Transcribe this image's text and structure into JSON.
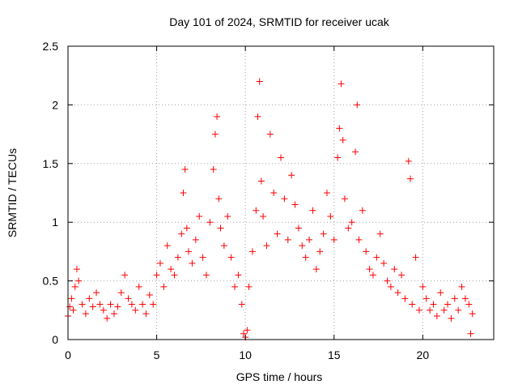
{
  "chart_data": {
    "type": "scatter",
    "title": "Day 101 of 2024, SRMTID for receiver ucak",
    "xlabel": "GPS time / hours",
    "ylabel": "SRMTID / TECUs",
    "xlim": [
      0,
      24
    ],
    "ylim": [
      0,
      2.5
    ],
    "xticks": [
      0,
      5,
      10,
      15,
      20
    ],
    "xtick_labels": [
      "0",
      "5",
      "10",
      "15",
      "20"
    ],
    "yticks": [
      0,
      0.5,
      1,
      1.5,
      2,
      2.5
    ],
    "ytick_labels": [
      "0",
      "0.5",
      "1",
      "1.5",
      "2",
      "2.5"
    ],
    "grid": true,
    "marker": "+",
    "series": [
      {
        "name": "SRMTID",
        "color": "#ff0000",
        "x": [
          0.0,
          0.1,
          0.2,
          0.3,
          0.4,
          0.5,
          0.6,
          0.8,
          1.0,
          1.2,
          1.4,
          1.6,
          1.8,
          2.0,
          2.2,
          2.4,
          2.6,
          2.8,
          3.0,
          3.2,
          3.4,
          3.6,
          3.8,
          4.0,
          4.2,
          4.4,
          4.6,
          4.8,
          5.0,
          5.2,
          5.4,
          5.6,
          5.8,
          6.0,
          6.2,
          6.4,
          6.5,
          6.6,
          6.7,
          6.8,
          7.0,
          7.2,
          7.4,
          7.6,
          7.8,
          8.0,
          8.2,
          8.3,
          8.4,
          8.5,
          8.6,
          8.8,
          9.0,
          9.2,
          9.4,
          9.6,
          9.8,
          9.9,
          10.0,
          10.1,
          10.2,
          10.4,
          10.6,
          10.7,
          10.8,
          10.9,
          11.0,
          11.2,
          11.4,
          11.6,
          11.8,
          12.0,
          12.2,
          12.4,
          12.6,
          12.8,
          13.0,
          13.2,
          13.4,
          13.6,
          13.8,
          14.0,
          14.2,
          14.4,
          14.6,
          14.8,
          15.0,
          15.2,
          15.3,
          15.4,
          15.5,
          15.6,
          15.8,
          16.0,
          16.2,
          16.3,
          16.4,
          16.6,
          16.8,
          17.0,
          17.2,
          17.4,
          17.6,
          17.8,
          18.0,
          18.2,
          18.4,
          18.6,
          18.8,
          19.0,
          19.2,
          19.3,
          19.4,
          19.6,
          19.8,
          20.0,
          20.2,
          20.4,
          20.6,
          20.8,
          21.0,
          21.2,
          21.4,
          21.6,
          21.8,
          22.0,
          22.2,
          22.4,
          22.6,
          22.7,
          22.8
        ],
        "y": [
          0.2,
          0.28,
          0.35,
          0.25,
          0.45,
          0.6,
          0.5,
          0.3,
          0.22,
          0.35,
          0.28,
          0.4,
          0.3,
          0.25,
          0.18,
          0.3,
          0.22,
          0.28,
          0.4,
          0.55,
          0.35,
          0.3,
          0.25,
          0.45,
          0.3,
          0.22,
          0.38,
          0.3,
          0.55,
          0.65,
          0.45,
          0.8,
          0.6,
          0.55,
          0.7,
          0.9,
          1.25,
          1.45,
          0.95,
          0.75,
          0.65,
          0.85,
          1.05,
          0.7,
          0.55,
          1.0,
          1.45,
          1.75,
          1.9,
          1.2,
          0.95,
          0.8,
          1.05,
          0.7,
          0.45,
          0.55,
          0.3,
          0.05,
          0.02,
          0.08,
          0.45,
          0.75,
          1.1,
          1.9,
          2.2,
          1.35,
          1.05,
          0.8,
          1.75,
          1.25,
          0.9,
          1.55,
          1.2,
          0.85,
          1.4,
          1.15,
          0.95,
          0.8,
          0.7,
          0.85,
          1.1,
          0.6,
          0.75,
          0.9,
          1.25,
          1.05,
          0.85,
          1.55,
          1.8,
          2.18,
          1.7,
          1.2,
          0.95,
          1.0,
          1.6,
          2.0,
          0.85,
          1.1,
          0.75,
          0.6,
          0.55,
          0.7,
          0.9,
          0.65,
          0.5,
          0.45,
          0.6,
          0.4,
          0.55,
          0.35,
          1.52,
          1.37,
          0.3,
          0.7,
          0.25,
          0.45,
          0.35,
          0.25,
          0.3,
          0.2,
          0.4,
          0.25,
          0.3,
          0.18,
          0.35,
          0.25,
          0.45,
          0.35,
          0.3,
          0.05,
          0.22
        ]
      }
    ]
  }
}
